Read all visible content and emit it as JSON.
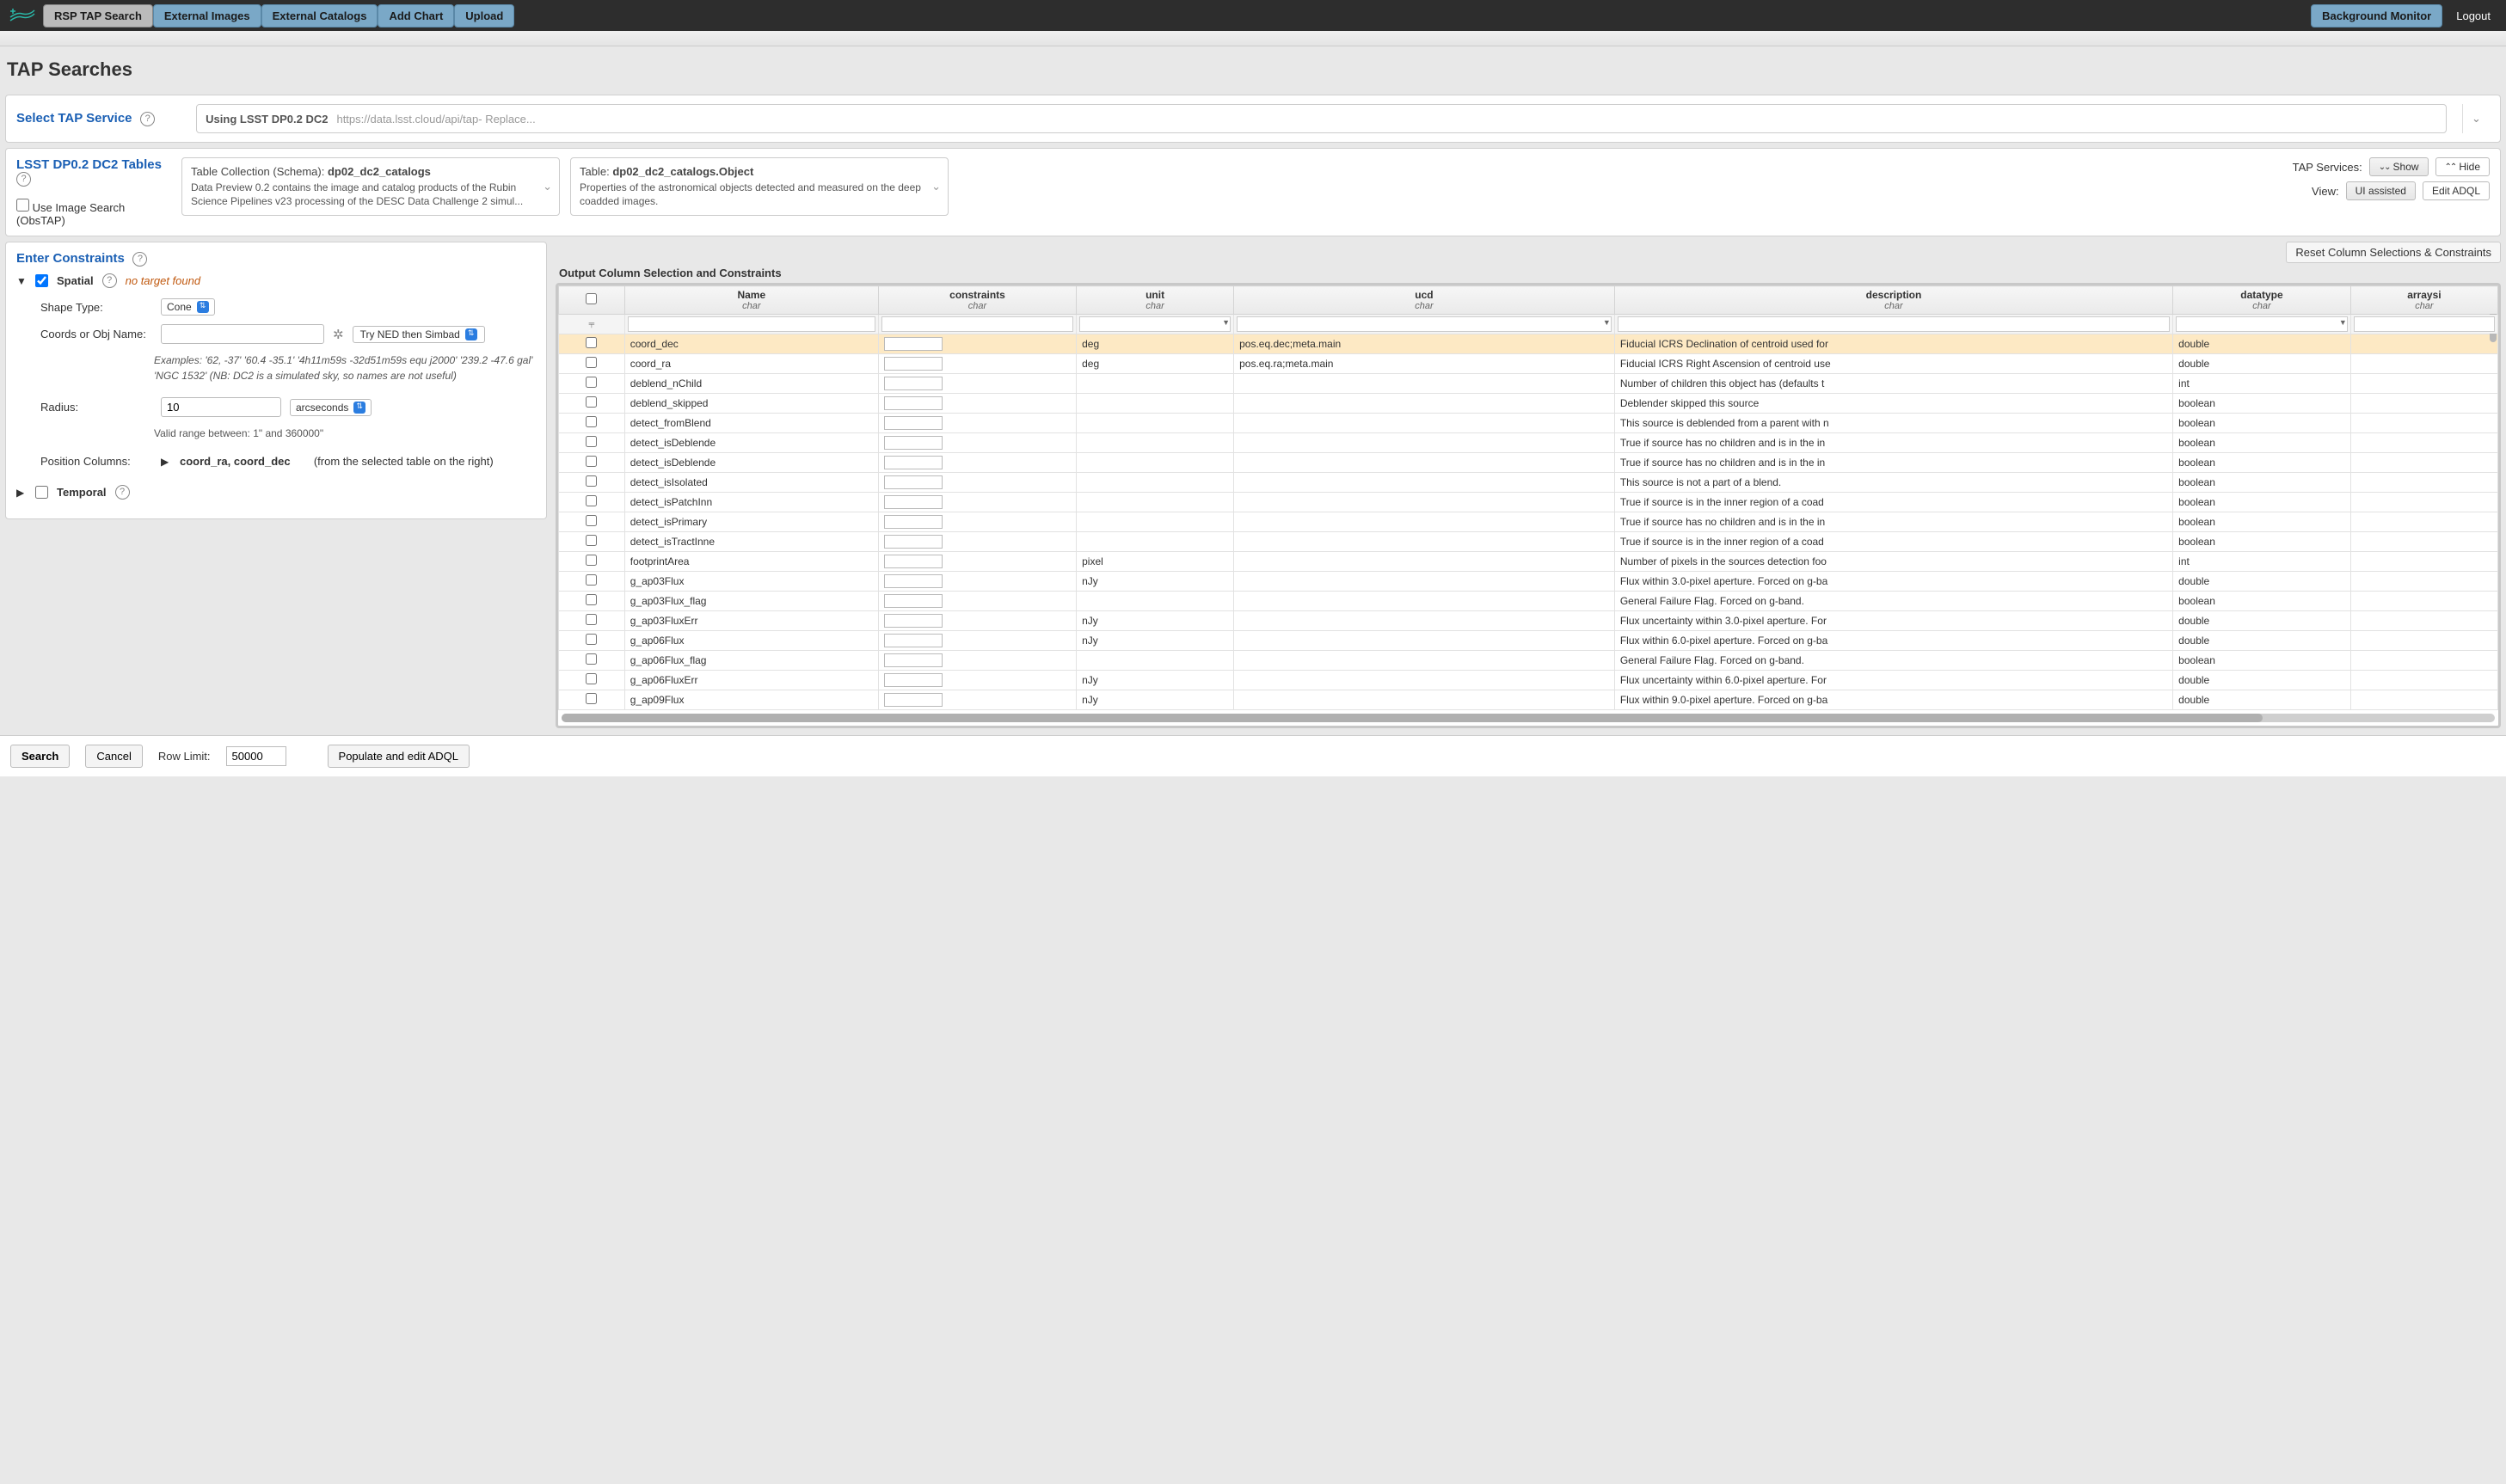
{
  "topbar": {
    "buttons": [
      {
        "label": "RSP TAP Search",
        "selected": true
      },
      {
        "label": "External Images",
        "selected": false
      },
      {
        "label": "External Catalogs",
        "selected": false
      },
      {
        "label": "Add Chart",
        "selected": false
      },
      {
        "label": "Upload",
        "selected": false
      }
    ],
    "backgroundMonitor": "Background Monitor",
    "logout": "Logout"
  },
  "pageTitle": "TAP Searches",
  "tapService": {
    "label": "Select TAP Service",
    "using": "Using LSST DP0.2 DC2",
    "url": "https://data.lsst.cloud/api/tap",
    "replace": " - Replace..."
  },
  "tables": {
    "label": "LSST DP0.2 DC2 Tables",
    "useImageSearch": "Use Image Search (ObsTAP)",
    "collection": {
      "titlePrefix": "Table Collection (Schema):  ",
      "name": "dp02_dc2_catalogs",
      "desc": "Data Preview 0.2 contains the image and catalog products of the Rubin Science Pipelines v23 processing of the DESC Data Challenge 2 simul..."
    },
    "table": {
      "titlePrefix": "Table:  ",
      "name": "dp02_dc2_catalogs.Object",
      "desc": "Properties of the astronomical objects detected and measured on the deep coadded images."
    },
    "rightControls": {
      "tapServicesLabel": "TAP Services:",
      "show": "Show",
      "hide": "Hide",
      "viewLabel": "View:",
      "uiAssisted": "UI assisted",
      "editADQL": "Edit ADQL"
    }
  },
  "constraints": {
    "label": "Enter Constraints",
    "resetLink": "Reset Column Selections & Constraints",
    "spatial": {
      "name": "Spatial",
      "checked": true,
      "expanded": true,
      "noTarget": "no target found",
      "shapeTypeLabel": "Shape Type:",
      "shapeType": "Cone",
      "coordsLabel": "Coords or Obj Name:",
      "coordsValue": "",
      "nedBtn": "Try NED then Simbad",
      "examplesPrefix": "Examples: ",
      "examplesLine1": "'62, -37'    '60.4 -35.1'    '4h11m59s -32d51m59s equ j2000'    '239.2 -47.6 gal'",
      "examplesLine2": "'NGC 1532' (NB: DC2 is a simulated sky, so names are not useful)",
      "radiusLabel": "Radius:",
      "radiusValue": "10",
      "radiusUnit": "arcseconds",
      "radiusRange": "Valid range between: 1\" and 360000\"",
      "posColsLabel": "Position Columns:",
      "posCols": "coord_ra, coord_dec",
      "posColsNote": "(from the selected table on the right)"
    },
    "temporal": {
      "name": "Temporal",
      "checked": false,
      "expanded": false
    }
  },
  "outputTable": {
    "title": "Output Column Selection and Constraints",
    "headers": [
      {
        "name": "Name",
        "sub": "char"
      },
      {
        "name": "constraints",
        "sub": "char"
      },
      {
        "name": "unit",
        "sub": "char"
      },
      {
        "name": "ucd",
        "sub": "char"
      },
      {
        "name": "description",
        "sub": "char"
      },
      {
        "name": "datatype",
        "sub": "char"
      },
      {
        "name": "arraysi",
        "sub": "char"
      }
    ],
    "rows": [
      {
        "checked": false,
        "highlighted": true,
        "name": "coord_dec",
        "unit": "deg",
        "ucd": "pos.eq.dec;meta.main",
        "desc": "Fiducial ICRS Declination of centroid used for",
        "dtype": "double"
      },
      {
        "checked": false,
        "name": "coord_ra",
        "unit": "deg",
        "ucd": "pos.eq.ra;meta.main",
        "desc": "Fiducial ICRS Right Ascension of centroid use",
        "dtype": "double"
      },
      {
        "checked": false,
        "name": "deblend_nChild",
        "unit": "",
        "ucd": "",
        "desc": "Number of children this object has (defaults t",
        "dtype": "int"
      },
      {
        "checked": false,
        "name": "deblend_skipped",
        "unit": "",
        "ucd": "",
        "desc": "Deblender skipped this source",
        "dtype": "boolean"
      },
      {
        "checked": false,
        "name": "detect_fromBlend",
        "unit": "",
        "ucd": "",
        "desc": "This source is deblended from a parent with n",
        "dtype": "boolean"
      },
      {
        "checked": false,
        "name": "detect_isDeblende",
        "unit": "",
        "ucd": "",
        "desc": "True if source has no children and is in the in",
        "dtype": "boolean"
      },
      {
        "checked": false,
        "name": "detect_isDeblende",
        "unit": "",
        "ucd": "",
        "desc": "True if source has no children and is in the in",
        "dtype": "boolean"
      },
      {
        "checked": false,
        "name": "detect_isIsolated",
        "unit": "",
        "ucd": "",
        "desc": "This source is not a part of a blend.",
        "dtype": "boolean"
      },
      {
        "checked": false,
        "name": "detect_isPatchInn",
        "unit": "",
        "ucd": "",
        "desc": "True if source is in the inner region of a coad",
        "dtype": "boolean"
      },
      {
        "checked": false,
        "name": "detect_isPrimary",
        "unit": "",
        "ucd": "",
        "desc": "True if source has no children and is in the in",
        "dtype": "boolean"
      },
      {
        "checked": false,
        "name": "detect_isTractInne",
        "unit": "",
        "ucd": "",
        "desc": "True if source is in the inner region of a coad",
        "dtype": "boolean"
      },
      {
        "checked": false,
        "name": "footprintArea",
        "unit": "pixel",
        "ucd": "",
        "desc": "Number of pixels in the sources detection foo",
        "dtype": "int"
      },
      {
        "checked": false,
        "name": "g_ap03Flux",
        "unit": "nJy",
        "ucd": "",
        "desc": "Flux within 3.0-pixel aperture. Forced on g-ba",
        "dtype": "double"
      },
      {
        "checked": false,
        "name": "g_ap03Flux_flag",
        "unit": "",
        "ucd": "",
        "desc": "General Failure Flag. Forced on g-band.",
        "dtype": "boolean"
      },
      {
        "checked": false,
        "name": "g_ap03FluxErr",
        "unit": "nJy",
        "ucd": "",
        "desc": "Flux uncertainty within 3.0-pixel aperture. For",
        "dtype": "double"
      },
      {
        "checked": false,
        "name": "g_ap06Flux",
        "unit": "nJy",
        "ucd": "",
        "desc": "Flux within 6.0-pixel aperture. Forced on g-ba",
        "dtype": "double"
      },
      {
        "checked": false,
        "name": "g_ap06Flux_flag",
        "unit": "",
        "ucd": "",
        "desc": "General Failure Flag. Forced on g-band.",
        "dtype": "boolean"
      },
      {
        "checked": false,
        "name": "g_ap06FluxErr",
        "unit": "nJy",
        "ucd": "",
        "desc": "Flux uncertainty within 6.0-pixel aperture. For",
        "dtype": "double"
      },
      {
        "checked": false,
        "name": "g_ap09Flux",
        "unit": "nJy",
        "ucd": "",
        "desc": "Flux within 9.0-pixel aperture. Forced on g-ba",
        "dtype": "double"
      }
    ]
  },
  "footer": {
    "search": "Search",
    "cancel": "Cancel",
    "rowLimitLabel": "Row Limit:",
    "rowLimit": "50000",
    "populate": "Populate and edit ADQL"
  },
  "colors": {
    "topbarBg": "#2d2d2d",
    "topbtnBg": "#7aa8c7",
    "highlightRow": "#fde9c4",
    "linkBlue": "#1a5fb4",
    "logoTeal": "#2ab8a8"
  }
}
